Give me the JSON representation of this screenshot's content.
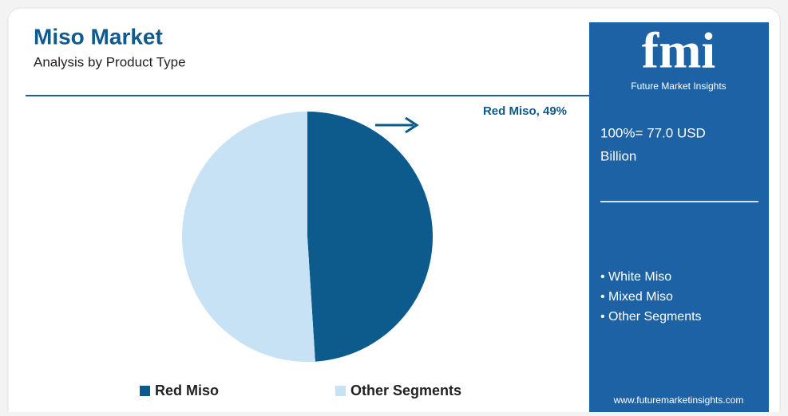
{
  "chart_data": {
    "type": "pie",
    "title": "Miso Market",
    "subtitle": "Analysis by Product Type",
    "categories": [
      "Red Miso",
      "Other Segments"
    ],
    "values": [
      49,
      51
    ],
    "value_labels": [
      "Red Miso, 49%",
      null
    ],
    "colors": [
      "#0d5a8c",
      "#c6e2f4"
    ],
    "legend": "bottom"
  },
  "panel": {
    "logo": "fmi",
    "brand": "Future Market Insights",
    "total_line1": "100%= 77.0 USD",
    "total_line2": "Billion",
    "items": [
      "• White Miso",
      "• Mixed Miso",
      "• Other Segments"
    ],
    "website": "www.futuremarketinsights.com"
  }
}
